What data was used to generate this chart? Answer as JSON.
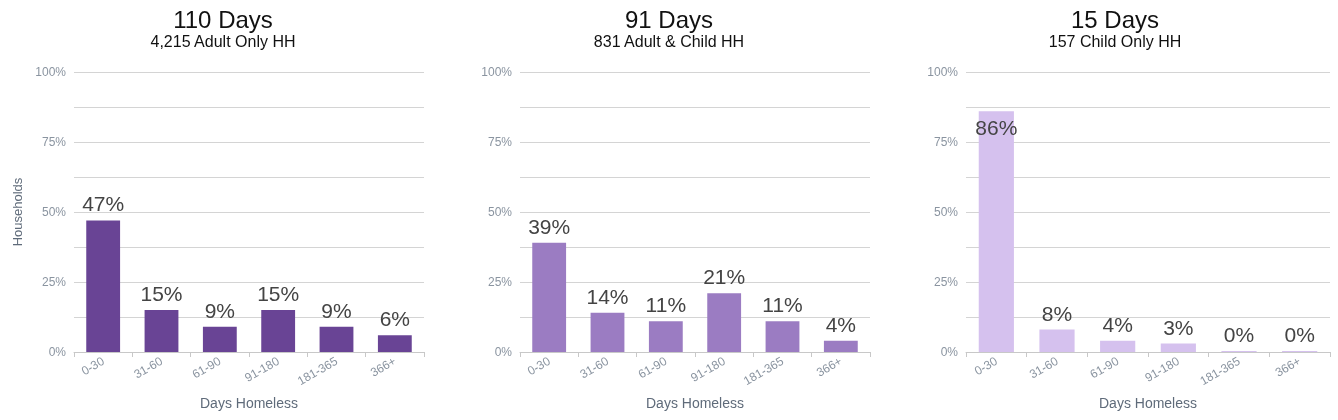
{
  "chart_data": [
    {
      "type": "bar",
      "title": "110 Days",
      "subtitle": "4,215 Adult Only HH",
      "xlabel": "Days Homeless",
      "ylabel": "Households",
      "categories": [
        "0-30",
        "31-60",
        "61-90",
        "91-180",
        "181-365",
        "366+"
      ],
      "values": [
        47,
        15,
        9,
        15,
        9,
        6
      ],
      "value_labels": [
        "47%",
        "15%",
        "9%",
        "15%",
        "9%",
        "6%"
      ],
      "color": "#694495",
      "ylim": [
        0,
        100
      ],
      "yticks": [
        {
          "value": 0,
          "label": "0%"
        },
        {
          "value": 12.5,
          "label": null
        },
        {
          "value": 25,
          "label": "25%"
        },
        {
          "value": 37.5,
          "label": null
        },
        {
          "value": 50,
          "label": "50%"
        },
        {
          "value": 62.5,
          "label": null
        },
        {
          "value": 75,
          "label": "75%"
        },
        {
          "value": 87.5,
          "label": null
        },
        {
          "value": 100,
          "label": "100%"
        }
      ],
      "grid": "y"
    },
    {
      "type": "bar",
      "title": "91 Days",
      "subtitle": "831 Adult & Child HH",
      "xlabel": "Days Homeless",
      "categories": [
        "0-30",
        "31-60",
        "61-90",
        "91-180",
        "181-365",
        "366+"
      ],
      "values": [
        39,
        14,
        11,
        21,
        11,
        4
      ],
      "value_labels": [
        "39%",
        "14%",
        "11%",
        "21%",
        "11%",
        "4%"
      ],
      "color": "#9b7cc2",
      "ylim": [
        0,
        100
      ],
      "yticks": [
        {
          "value": 0,
          "label": "0%"
        },
        {
          "value": 12.5,
          "label": null
        },
        {
          "value": 25,
          "label": "25%"
        },
        {
          "value": 37.5,
          "label": null
        },
        {
          "value": 50,
          "label": "50%"
        },
        {
          "value": 62.5,
          "label": null
        },
        {
          "value": 75,
          "label": "75%"
        },
        {
          "value": 87.5,
          "label": null
        },
        {
          "value": 100,
          "label": "100%"
        }
      ],
      "grid": "y"
    },
    {
      "type": "bar",
      "title": "15 Days",
      "subtitle": "157 Child Only HH",
      "xlabel": "Days Homeless",
      "categories": [
        "0-30",
        "31-60",
        "61-90",
        "91-180",
        "181-365",
        "366+"
      ],
      "values": [
        86,
        8,
        4,
        3,
        0.4,
        0.4
      ],
      "value_labels": [
        "86%",
        "8%",
        "4%",
        "3%",
        "0%",
        "0%"
      ],
      "color": "#d5c1ee",
      "ylim": [
        0,
        100
      ],
      "yticks": [
        {
          "value": 0,
          "label": "0%"
        },
        {
          "value": 12.5,
          "label": null
        },
        {
          "value": 25,
          "label": "25%"
        },
        {
          "value": 37.5,
          "label": null
        },
        {
          "value": 50,
          "label": "50%"
        },
        {
          "value": 62.5,
          "label": null
        },
        {
          "value": 75,
          "label": "75%"
        },
        {
          "value": 87.5,
          "label": null
        },
        {
          "value": 100,
          "label": "100%"
        }
      ],
      "grid": "y"
    }
  ]
}
